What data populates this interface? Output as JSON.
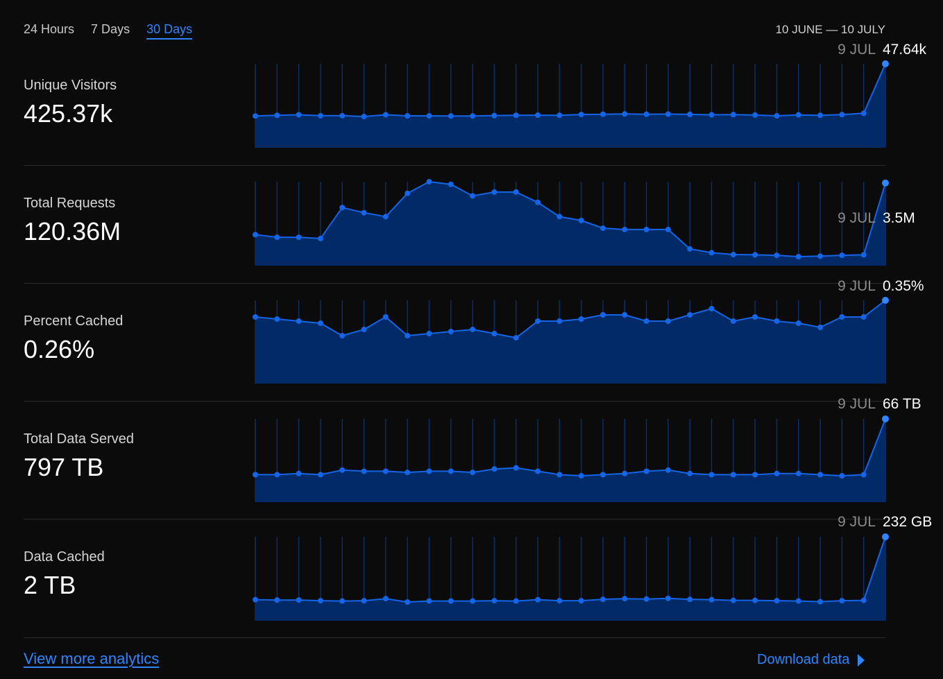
{
  "tabs": [
    {
      "label": "24 Hours",
      "active": false
    },
    {
      "label": "7 Days",
      "active": false
    },
    {
      "label": "30 Days",
      "active": true
    }
  ],
  "date_range": "10 JUNE — 10 JULY",
  "colors": {
    "accent": "#2f86ff",
    "fill": "#012a66",
    "line": "#1565e6",
    "guide": "#0c2f66"
  },
  "metrics": [
    {
      "label": "Unique Visitors",
      "value": "425.37k",
      "last_date": "9 JUL",
      "last_value": "47.64k"
    },
    {
      "label": "Total Requests",
      "value": "120.36M",
      "last_date": "9 JUL",
      "last_value": "3.5M"
    },
    {
      "label": "Percent Cached",
      "value": "0.26%",
      "last_date": "9 JUL",
      "last_value": "0.35%"
    },
    {
      "label": "Total Data Served",
      "value": "797 TB",
      "last_date": "9 JUL",
      "last_value": "66 TB"
    },
    {
      "label": "Data Cached",
      "value": "2 TB",
      "last_date": "9 JUL",
      "last_value": "232 GB"
    }
  ],
  "chart_data": [
    {
      "type": "area",
      "name": "Unique Visitors",
      "values": [
        9.0,
        9.5,
        9.9,
        9.2,
        9.2,
        8.6,
        9.9,
        9.1,
        9.1,
        9.0,
        9.0,
        9.3,
        9.5,
        9.6,
        9.5,
        10.1,
        10.3,
        10.5,
        10.3,
        10.4,
        10.2,
        9.9,
        10.0,
        9.7,
        9.1,
        9.8,
        9.5,
        10.0,
        11.0,
        47.64
      ]
    },
    {
      "type": "area",
      "name": "Total Requests",
      "values": [
        1.5,
        1.4,
        1.4,
        1.35,
        2.55,
        2.35,
        2.2,
        3.1,
        3.55,
        3.45,
        3.0,
        3.15,
        3.15,
        2.75,
        2.2,
        2.05,
        1.75,
        1.7,
        1.7,
        1.7,
        0.95,
        0.8,
        0.73,
        0.72,
        0.7,
        0.65,
        0.67,
        0.7,
        0.72,
        3.5
      ]
    },
    {
      "type": "area",
      "name": "Percent Cached",
      "values": [
        0.27,
        0.26,
        0.25,
        0.24,
        0.18,
        0.21,
        0.27,
        0.18,
        0.19,
        0.2,
        0.21,
        0.19,
        0.17,
        0.25,
        0.25,
        0.26,
        0.28,
        0.28,
        0.25,
        0.25,
        0.28,
        0.31,
        0.25,
        0.27,
        0.25,
        0.24,
        0.22,
        0.27,
        0.27,
        0.35
      ]
    },
    {
      "type": "area",
      "name": "Total Data Served",
      "values": [
        17,
        17,
        18,
        17,
        21,
        20,
        20,
        19,
        20,
        20,
        19,
        22,
        23,
        20,
        17,
        16,
        17,
        18,
        20,
        21,
        18,
        17,
        17,
        17,
        18,
        18,
        17,
        16,
        17,
        66
      ]
    },
    {
      "type": "area",
      "name": "Data Cached",
      "values": [
        44,
        43,
        43,
        41,
        40,
        41,
        47,
        37,
        40,
        40,
        40,
        41,
        40,
        44,
        41,
        41,
        45,
        47,
        46,
        48,
        45,
        44,
        42,
        42,
        41,
        40,
        38,
        41,
        42,
        232
      ]
    }
  ],
  "footer": {
    "more_analytics": "View more analytics",
    "download": "Download data"
  }
}
